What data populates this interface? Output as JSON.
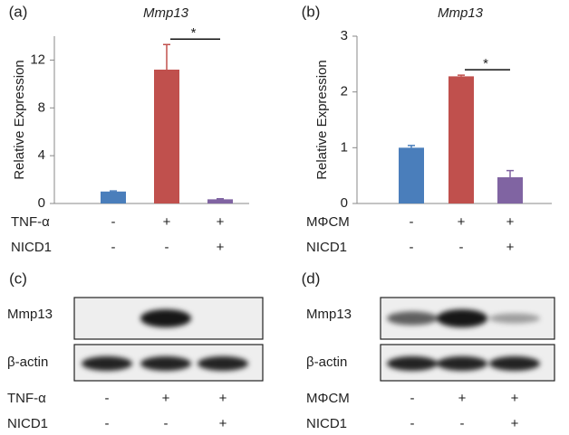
{
  "chart_data": [
    {
      "type": "bar",
      "panel": "(a)",
      "title": "Mmp13",
      "ylabel": "Relative Expression",
      "values": [
        1.0,
        11.2,
        0.35
      ],
      "error": [
        0.05,
        2.1,
        0.05
      ],
      "colors": [
        "#4a7ebb",
        "#c0504d",
        "#8064a2"
      ],
      "ylim": [
        0,
        14
      ],
      "yticks": [
        0,
        4,
        8,
        12
      ],
      "grid": false,
      "conditions": [
        {
          "label": "TNF-α",
          "signs": [
            "-",
            "+",
            "+"
          ]
        },
        {
          "label": "NICD1",
          "signs": [
            "-",
            "-",
            "+"
          ]
        }
      ],
      "significance": {
        "label": "*",
        "between": [
          1,
          2
        ]
      }
    },
    {
      "type": "bar",
      "panel": "(b)",
      "title": "Mmp13",
      "ylabel": "Relative Expression",
      "values": [
        1.0,
        2.28,
        0.47
      ],
      "error": [
        0.04,
        0.02,
        0.12
      ],
      "colors": [
        "#4a7ebb",
        "#c0504d",
        "#8064a2"
      ],
      "ylim": [
        0,
        3
      ],
      "yticks": [
        0,
        1,
        2,
        3
      ],
      "grid": false,
      "conditions": [
        {
          "label": "MΦCM",
          "signs": [
            "-",
            "+",
            "+"
          ]
        },
        {
          "label": "NICD1",
          "signs": [
            "-",
            "-",
            "+"
          ]
        }
      ],
      "significance": {
        "label": "*",
        "between": [
          1,
          2
        ]
      }
    }
  ],
  "blots": [
    {
      "panel": "(c)",
      "rows": [
        "Mmp13",
        "β-actin"
      ],
      "conditions": [
        {
          "label": "TNF-α",
          "signs": [
            "-",
            "+",
            "+"
          ]
        },
        {
          "label": "NICD1",
          "signs": [
            "-",
            "-",
            "+"
          ]
        }
      ]
    },
    {
      "panel": "(d)",
      "rows": [
        "Mmp13",
        "β-actin"
      ],
      "conditions": [
        {
          "label": "MΦCM",
          "signs": [
            "-",
            "+",
            "+"
          ]
        },
        {
          "label": "NICD1",
          "signs": [
            "-",
            "-",
            "+"
          ]
        }
      ]
    }
  ]
}
